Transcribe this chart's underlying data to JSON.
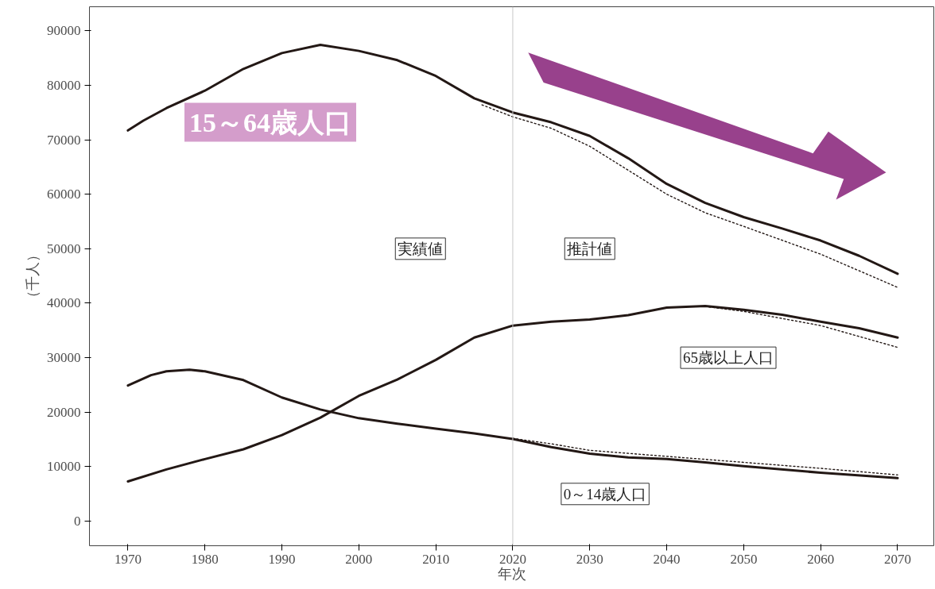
{
  "chart_data": {
    "type": "line",
    "xlabel": "年次",
    "ylabel": "（千人）",
    "xlim": [
      1965,
      2074.7
    ],
    "ylim": [
      -4500,
      94400
    ],
    "xticks": [
      1970,
      1980,
      1990,
      2000,
      2010,
      2020,
      2030,
      2040,
      2050,
      2060,
      2070
    ],
    "yticks": [
      0,
      10000,
      20000,
      30000,
      40000,
      50000,
      60000,
      70000,
      80000,
      90000
    ],
    "grid": false,
    "line_style": "solid",
    "series": [
      {
        "color": "#231815",
        "x": [
          1970,
          1972,
          1975,
          1980,
          1985,
          1990,
          1995,
          2000,
          2005,
          2010,
          2015,
          2020,
          2025,
          2030,
          2035,
          2040,
          2045,
          2050,
          2055,
          2060,
          2065,
          2070
        ],
        "values": [
          71700,
          73500,
          75800,
          79000,
          83000,
          85900,
          87400,
          86300,
          84600,
          81700,
          77600,
          75000,
          73200,
          70700,
          66600,
          61900,
          58400,
          55800,
          53700,
          51500,
          48700,
          45400
        ]
      },
      {
        "color": "#231815",
        "line_style": "dotted",
        "x": [
          2016,
          2020,
          2025,
          2030,
          2035,
          2040,
          2045,
          2050,
          2060,
          2070
        ],
        "values": [
          76400,
          74200,
          72100,
          68800,
          64400,
          60000,
          56600,
          54100,
          49000,
          42900
        ]
      },
      {
        "color": "#231815",
        "x": [
          1970,
          1975,
          1980,
          1985,
          1990,
          1995,
          2000,
          2005,
          2010,
          2015,
          2020,
          2025,
          2030,
          2035,
          2040,
          2045,
          2050,
          2055,
          2060,
          2065,
          2070
        ],
        "values": [
          7300,
          9500,
          11400,
          13200,
          15800,
          19000,
          23000,
          26000,
          29600,
          33700,
          35900,
          36600,
          37000,
          37800,
          39200,
          39500,
          38800,
          37900,
          36600,
          35400,
          33700
        ]
      },
      {
        "color": "#231815",
        "line_style": "dotted",
        "x": [
          2045,
          2050,
          2060,
          2070
        ],
        "values": [
          39400,
          38500,
          35900,
          31900
        ]
      },
      {
        "color": "#231815",
        "x": [
          1970,
          1973,
          1975,
          1978,
          1980,
          1985,
          1990,
          1995,
          2000,
          2005,
          2010,
          2015,
          2020,
          2025,
          2030,
          2035,
          2040,
          2045,
          2050,
          2060,
          2070
        ],
        "values": [
          24900,
          26800,
          27500,
          27800,
          27500,
          25900,
          22700,
          20500,
          18900,
          17900,
          17000,
          16100,
          15100,
          13600,
          12400,
          11700,
          11400,
          10800,
          10100,
          8900,
          7900
        ]
      },
      {
        "color": "#231815",
        "line_style": "dotted",
        "x": [
          2020,
          2025,
          2030,
          2040,
          2050,
          2060,
          2070
        ],
        "values": [
          15200,
          14200,
          13000,
          11900,
          10800,
          9700,
          8500
        ]
      }
    ],
    "ref_lines": [
      {
        "axis": "x",
        "value": 2020,
        "color": "#c8c8c8"
      }
    ],
    "annotations": [
      "15～64歳人口",
      "実績値",
      "推計値",
      "65歳以上人口",
      "0～14歳人口"
    ]
  }
}
